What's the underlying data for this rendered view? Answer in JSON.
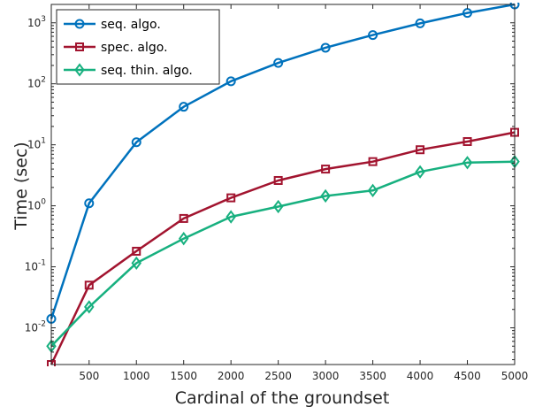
{
  "chart_data": {
    "type": "line",
    "xlabel": "Cardinal of the groundset",
    "ylabel": "Time (sec)",
    "xlim": [
      100,
      5000
    ],
    "ylim": [
      0.0025,
      2000
    ],
    "y_scale": "log",
    "x_ticks": [
      500,
      1000,
      1500,
      2000,
      2500,
      3000,
      3500,
      4000,
      4500,
      5000
    ],
    "y_ticks": [
      {
        "value": 0.01,
        "base": "10",
        "exp": "-2"
      },
      {
        "value": 0.1,
        "base": "10",
        "exp": "-1"
      },
      {
        "value": 1,
        "base": "10",
        "exp": "0"
      },
      {
        "value": 10,
        "base": "10",
        "exp": "1"
      },
      {
        "value": 100,
        "base": "10",
        "exp": "2"
      },
      {
        "value": 1000,
        "base": "10",
        "exp": "3"
      }
    ],
    "grid": false,
    "legend_position": "top-left",
    "series": [
      {
        "name": "seq. algo.",
        "color": "#0072BD",
        "marker": "circle",
        "x": [
          100,
          500,
          1000,
          1500,
          2000,
          2500,
          3000,
          3500,
          4000,
          4500,
          5000
        ],
        "y": [
          0.014,
          1.1,
          11,
          42,
          110,
          220,
          390,
          630,
          980,
          1450,
          2000
        ]
      },
      {
        "name": "spec. algo.",
        "color": "#A2142F",
        "marker": "square",
        "x": [
          100,
          500,
          1000,
          1500,
          2000,
          2500,
          3000,
          3500,
          4000,
          4500,
          5000
        ],
        "y": [
          0.0025,
          0.05,
          0.18,
          0.62,
          1.35,
          2.6,
          4.0,
          5.3,
          8.3,
          11.3,
          16
        ]
      },
      {
        "name": "seq. thin. algo.",
        "color": "#17B07F",
        "marker": "diamond",
        "x": [
          100,
          500,
          1000,
          1500,
          2000,
          2500,
          3000,
          3500,
          4000,
          4500,
          5000
        ],
        "y": [
          0.005,
          0.022,
          0.115,
          0.29,
          0.66,
          0.97,
          1.45,
          1.78,
          3.6,
          5.1,
          5.3
        ]
      }
    ]
  }
}
